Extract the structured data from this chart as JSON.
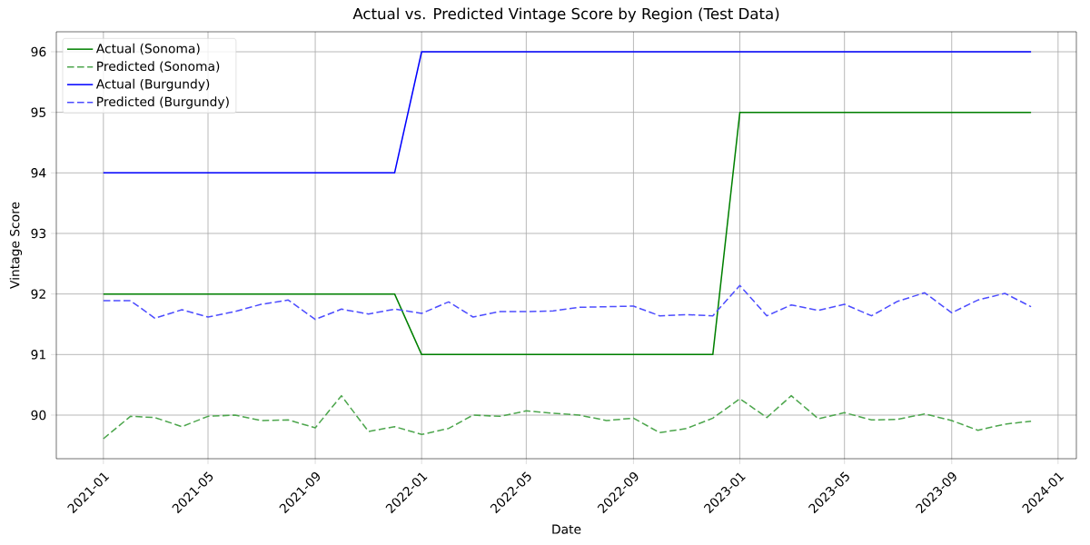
{
  "chart_data": {
    "type": "line",
    "title": "Actual vs. Predicted Vintage Score by Region (Test Data)",
    "xlabel": "Date",
    "ylabel": "Vintage Score",
    "x": [
      "2021-01",
      "2021-02",
      "2021-03",
      "2021-04",
      "2021-05",
      "2021-06",
      "2021-07",
      "2021-08",
      "2021-09",
      "2021-10",
      "2021-11",
      "2021-12",
      "2022-01",
      "2022-02",
      "2022-03",
      "2022-04",
      "2022-05",
      "2022-06",
      "2022-07",
      "2022-08",
      "2022-09",
      "2022-10",
      "2022-11",
      "2022-12",
      "2023-01",
      "2023-02",
      "2023-03",
      "2023-04",
      "2023-05",
      "2023-06",
      "2023-07",
      "2023-08",
      "2023-09",
      "2023-10",
      "2023-11",
      "2023-12"
    ],
    "series": [
      {
        "name": "Actual (Sonoma)",
        "color": "#008000",
        "line_style": "solid",
        "values": [
          92,
          92,
          92,
          92,
          92,
          92,
          92,
          92,
          92,
          92,
          92,
          92,
          91,
          91,
          91,
          91,
          91,
          91,
          91,
          91,
          91,
          91,
          91,
          91,
          95,
          95,
          95,
          95,
          95,
          95,
          95,
          95,
          95,
          95,
          95,
          95
        ]
      },
      {
        "name": "Predicted (Sonoma)",
        "color": "#4da64d",
        "line_style": "dashed",
        "values": [
          89.61,
          89.98,
          89.96,
          89.81,
          89.98,
          90.0,
          89.91,
          89.92,
          89.79,
          90.32,
          89.73,
          89.81,
          89.68,
          89.78,
          90.0,
          89.98,
          90.07,
          90.03,
          90.0,
          89.91,
          89.95,
          89.71,
          89.78,
          89.95,
          90.27,
          89.96,
          90.32,
          89.94,
          90.04,
          89.92,
          89.93,
          90.02,
          89.91,
          89.75,
          89.85,
          89.9
        ]
      },
      {
        "name": "Actual (Burgundy)",
        "color": "#0000ff",
        "line_style": "solid",
        "values": [
          94,
          94,
          94,
          94,
          94,
          94,
          94,
          94,
          94,
          94,
          94,
          94,
          96,
          96,
          96,
          96,
          96,
          96,
          96,
          96,
          96,
          96,
          96,
          96,
          96,
          96,
          96,
          96,
          96,
          96,
          96,
          96,
          96,
          96,
          96,
          96
        ]
      },
      {
        "name": "Predicted (Burgundy)",
        "color": "#4d4dff",
        "line_style": "dashed",
        "values": [
          91.89,
          91.89,
          91.6,
          91.74,
          91.62,
          91.71,
          91.83,
          91.9,
          91.58,
          91.75,
          91.67,
          91.75,
          91.68,
          91.87,
          91.62,
          91.71,
          91.71,
          91.72,
          91.78,
          91.79,
          91.8,
          91.64,
          91.66,
          91.64,
          92.14,
          91.64,
          91.82,
          91.73,
          91.83,
          91.64,
          91.88,
          92.02,
          91.69,
          91.9,
          92.01,
          91.79
        ]
      }
    ],
    "xlim": [
      "2020-11-08",
      "2024-01-22"
    ],
    "xticks": [
      "2021-01",
      "2021-05",
      "2021-09",
      "2022-01",
      "2022-05",
      "2022-09",
      "2023-01",
      "2023-05",
      "2023-09",
      "2024-01"
    ],
    "ylim": [
      89.28,
      96.33
    ],
    "yticks": [
      90,
      91,
      92,
      93,
      94,
      95,
      96
    ],
    "grid": true,
    "legend": "top left"
  }
}
